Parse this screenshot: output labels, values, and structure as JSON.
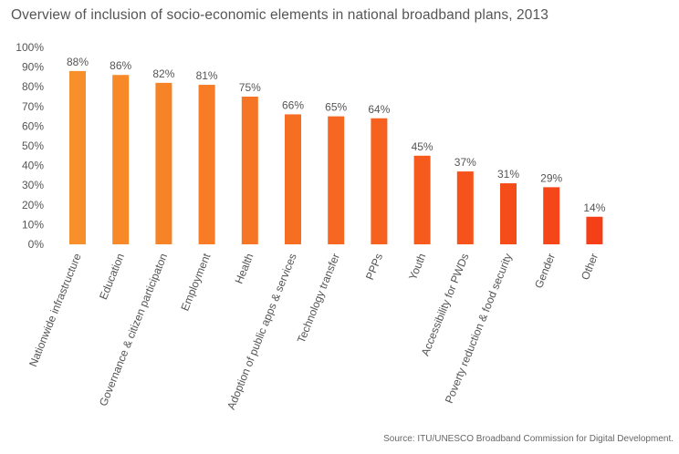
{
  "title": "Overview of inclusion of socio-economic elements in national broadband plans, 2013",
  "source": "Source: ITU/UNESCO Broadband Commission for Digital Development.",
  "chart_data": {
    "type": "bar",
    "categories": [
      "Nationwide infrastructure",
      "Education",
      "Governance & citizen participaton",
      "Employment",
      "Health",
      "Adoption of public apps & services",
      "Technology transfer",
      "PPPs",
      "Youth",
      "Accessibility for PWDs",
      "Poverty reduction & food security",
      "Gender",
      "Other"
    ],
    "values": [
      88,
      86,
      82,
      81,
      75,
      66,
      65,
      64,
      45,
      37,
      31,
      29,
      14
    ],
    "data_labels": [
      "88%",
      "86%",
      "82%",
      "81%",
      "75%",
      "66%",
      "65%",
      "64%",
      "45%",
      "37%",
      "31%",
      "29%",
      "14%"
    ],
    "y_ticks": [
      "0%",
      "10%",
      "20%",
      "30%",
      "40%",
      "50%",
      "60%",
      "70%",
      "80%",
      "90%",
      "100%"
    ],
    "ylim": [
      0,
      100
    ],
    "grid": false,
    "legend": "none",
    "xlabel": "",
    "ylabel": "",
    "colors": {
      "bar_start": "#F7902A",
      "bar_end": "#F53F17",
      "text": "#555555"
    }
  }
}
